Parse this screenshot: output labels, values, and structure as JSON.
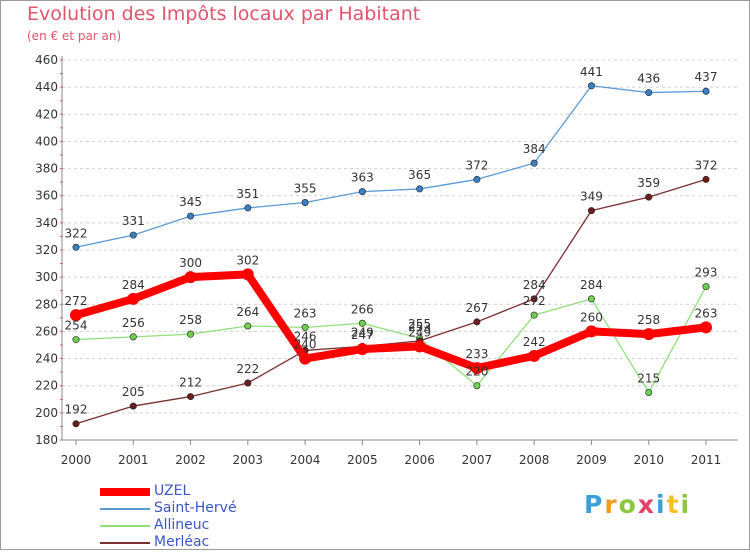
{
  "title": "Evolution des Impôts locaux par Habitant",
  "subtitle": "(en € et par an)",
  "logo": {
    "text": "Proxiti",
    "colors": [
      "#3aa0d8",
      "#f29b22",
      "#8cc63f",
      "#e2436a",
      "#3aa0d8",
      "#f2c322",
      "#8cc63f"
    ]
  },
  "chart_data": {
    "type": "line",
    "x": [
      "2000",
      "2001",
      "2002",
      "2003",
      "2004",
      "2005",
      "2006",
      "2007",
      "2008",
      "2009",
      "2010",
      "2011"
    ],
    "ylim": [
      180,
      460
    ],
    "yticks": [
      180,
      200,
      220,
      240,
      260,
      280,
      300,
      320,
      340,
      360,
      380,
      400,
      420,
      440,
      460
    ],
    "grid": "horizontal dashed",
    "legend_position": "bottom-left",
    "series": [
      {
        "name": "Saint-Hervé",
        "color": "#5b9bd5",
        "point_color": "#3a7fc4",
        "values": [
          322,
          331,
          345,
          351,
          355,
          363,
          365,
          372,
          384,
          441,
          436,
          437
        ]
      },
      {
        "name": "Allineuc",
        "color": "#90e07a",
        "point_color": "#6fd04f",
        "values": [
          254,
          256,
          258,
          264,
          263,
          266,
          255,
          220,
          272,
          284,
          215,
          293
        ]
      },
      {
        "name": "Merléac",
        "color": "#7a2f2f",
        "point_color": "#6b1e1e",
        "values": [
          192,
          205,
          212,
          222,
          246,
          249,
          253,
          267,
          284,
          349,
          359,
          372
        ]
      },
      {
        "name": "UZEL",
        "color": "#ff0000",
        "point_color": "#ff0000",
        "values": [
          272,
          284,
          300,
          302,
          240,
          247,
          249,
          233,
          242,
          260,
          258,
          263
        ]
      }
    ],
    "legend_order": [
      "UZEL",
      "Saint-Hervé",
      "Allineuc",
      "Merléac"
    ]
  }
}
